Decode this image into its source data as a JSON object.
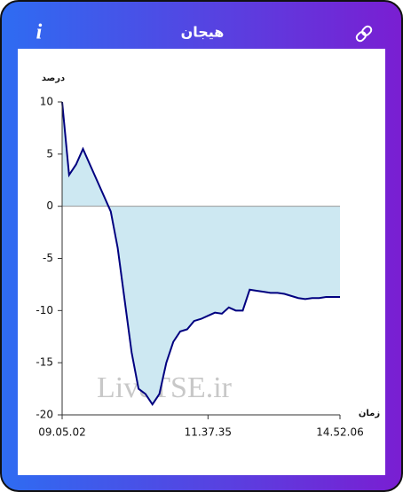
{
  "header": {
    "title": "هیجان",
    "info_icon": "i"
  },
  "chart_data": {
    "type": "area",
    "y_label": "درصد",
    "x_label": "زمان",
    "watermark": "LiveTSE.ir",
    "x": [
      "09.05.02",
      null,
      null,
      null,
      null,
      null,
      null,
      null,
      null,
      null,
      null,
      null,
      null,
      null,
      null,
      null,
      null,
      null,
      null,
      null,
      null,
      "11.37.35",
      null,
      null,
      null,
      null,
      null,
      null,
      null,
      null,
      null,
      null,
      null,
      null,
      null,
      null,
      null,
      null,
      null,
      null,
      "14.52.06"
    ],
    "values": [
      10,
      3,
      4,
      5.5,
      4,
      2.5,
      1,
      -0.5,
      -4,
      -9,
      -14,
      -17.5,
      -18,
      -19,
      -18,
      -15,
      -13,
      -12,
      -11.8,
      -11,
      -10.8,
      -10.5,
      -10.2,
      -10.3,
      -9.7,
      -10,
      -10,
      -8,
      -8.1,
      -8.2,
      -8.3,
      -8.3,
      -8.4,
      -8.6,
      -8.8,
      -8.9,
      -8.8,
      -8.8,
      -8.7,
      -8.7,
      -8.7
    ],
    "color": "#000080",
    "fill": "#cde8f2",
    "ylim": [
      -20,
      10
    ],
    "yticks": [
      -20,
      -15,
      -10,
      -5,
      0,
      5,
      10
    ]
  }
}
